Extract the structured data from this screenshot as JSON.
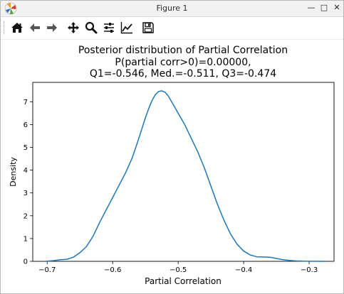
{
  "window": {
    "title": "Figure 1",
    "controls": {
      "minimize": "—",
      "maximize": "□",
      "close": "✕"
    }
  },
  "toolbar": {
    "buttons": [
      {
        "name": "home",
        "icon": "home-icon"
      },
      {
        "name": "back",
        "icon": "arrow-left-icon"
      },
      {
        "name": "forward",
        "icon": "arrow-right-icon"
      },
      {
        "name": "pan",
        "icon": "move-icon"
      },
      {
        "name": "zoom",
        "icon": "magnifier-icon"
      },
      {
        "name": "configure-subplots",
        "icon": "sliders-icon"
      },
      {
        "name": "edit-axis",
        "icon": "line-chart-icon"
      },
      {
        "name": "save",
        "icon": "floppy-disk-icon"
      }
    ]
  },
  "colors": {
    "line": "#1f77b4",
    "axes": "#000000",
    "background": "#ffffff"
  },
  "chart_data": {
    "type": "line",
    "title": [
      "Posterior distribution of Partial Correlation",
      "P(partial corr>0)=0.00000,",
      "Q1=-0.546, Med.=-0.511, Q3=-0.474"
    ],
    "xlabel": "Partial Correlation",
    "ylabel": "Density",
    "xlim": [
      -0.722,
      -0.262
    ],
    "ylim": [
      0,
      7.85
    ],
    "xticks": [
      -0.7,
      -0.6,
      -0.5,
      -0.4,
      -0.3
    ],
    "xtick_labels": [
      "−0.7",
      "−0.6",
      "−0.5",
      "−0.4",
      "−0.3"
    ],
    "yticks": [
      0,
      1,
      2,
      3,
      4,
      5,
      6,
      7
    ],
    "ytick_labels": [
      "0",
      "1",
      "2",
      "3",
      "4",
      "5",
      "6",
      "7"
    ],
    "grid": false,
    "series": [
      {
        "x": [
          -0.703,
          -0.69,
          -0.68,
          -0.67,
          -0.66,
          -0.65,
          -0.64,
          -0.63,
          -0.62,
          -0.61,
          -0.6,
          -0.59,
          -0.58,
          -0.57,
          -0.56,
          -0.55,
          -0.545,
          -0.54,
          -0.535,
          -0.53,
          -0.525,
          -0.52,
          -0.515,
          -0.51,
          -0.505,
          -0.5,
          -0.49,
          -0.48,
          -0.47,
          -0.46,
          -0.45,
          -0.44,
          -0.43,
          -0.42,
          -0.41,
          -0.4,
          -0.39,
          -0.38,
          -0.37,
          -0.36,
          -0.35,
          -0.34,
          -0.33,
          -0.32,
          -0.31,
          -0.3,
          -0.29,
          -0.28,
          -0.275
        ],
        "y": [
          0.0,
          0.03,
          0.07,
          0.09,
          0.18,
          0.38,
          0.65,
          1.1,
          1.7,
          2.25,
          2.8,
          3.35,
          3.9,
          4.55,
          5.4,
          6.3,
          6.7,
          7.05,
          7.3,
          7.45,
          7.48,
          7.42,
          7.25,
          7.0,
          6.75,
          6.5,
          6.0,
          5.4,
          4.8,
          4.1,
          3.3,
          2.5,
          1.8,
          1.2,
          0.75,
          0.45,
          0.28,
          0.2,
          0.19,
          0.18,
          0.13,
          0.07,
          0.04,
          0.02,
          0.01,
          0.005,
          0.003,
          0.002,
          0.001
        ]
      }
    ]
  }
}
